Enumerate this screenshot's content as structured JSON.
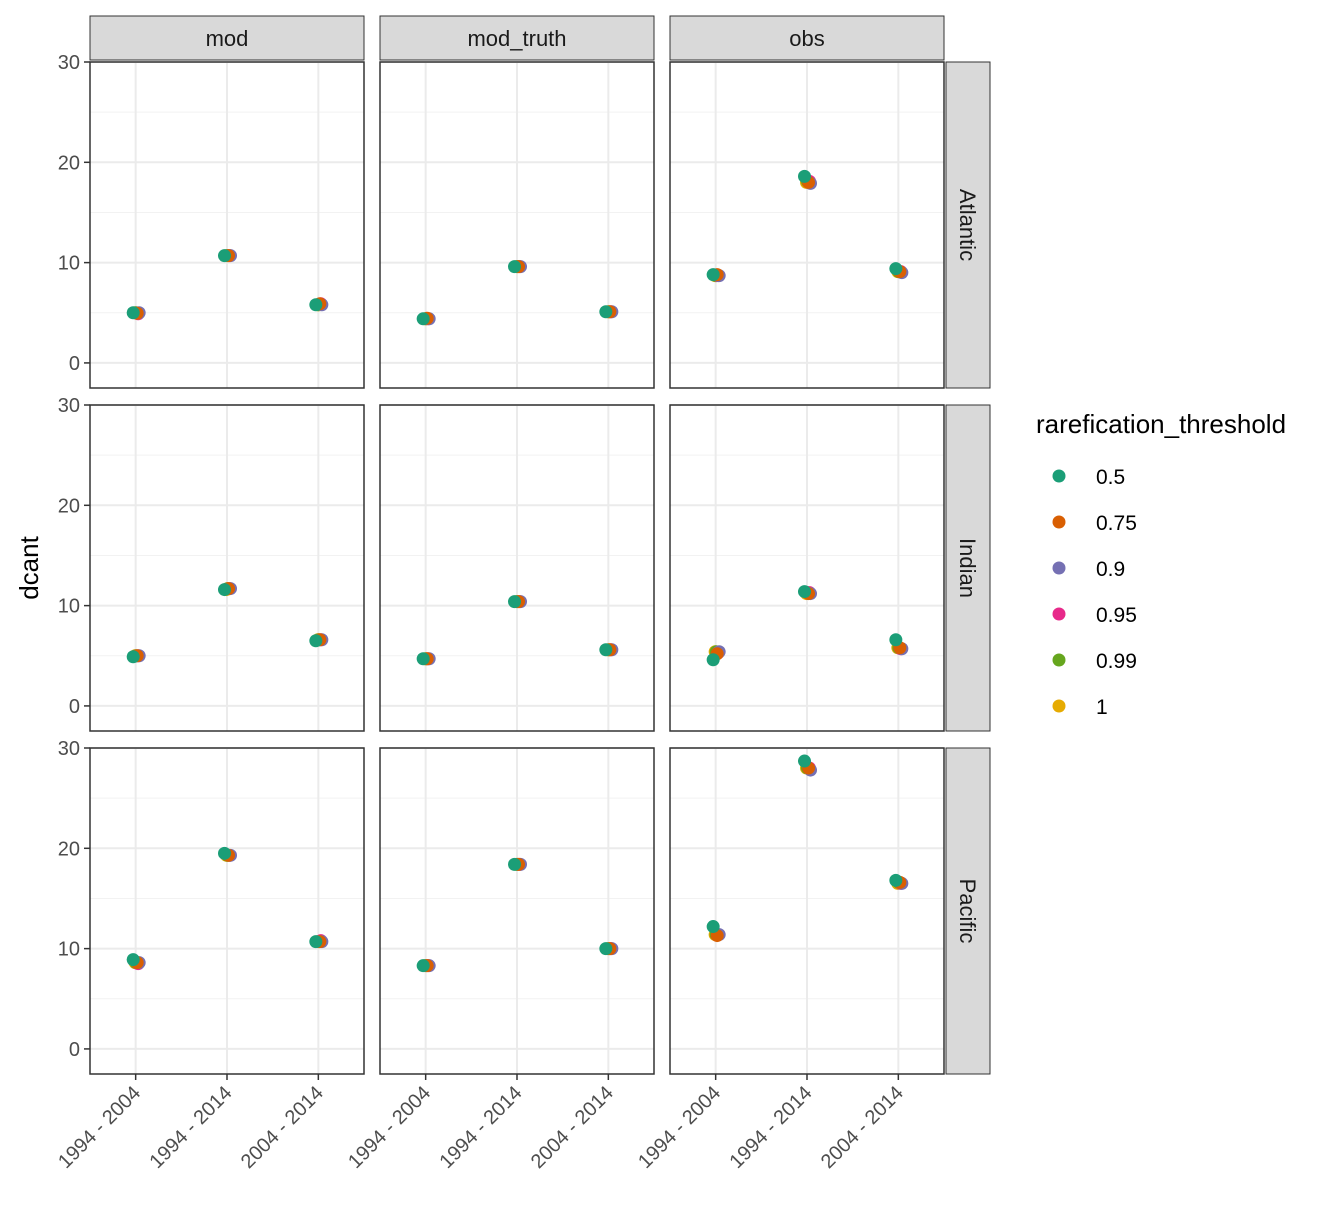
{
  "chart_data": {
    "type": "scatter",
    "ylabel": "dcant",
    "ylim": [
      -2.5,
      30
    ],
    "yticks": [
      0,
      10,
      20,
      30
    ],
    "x_categories": [
      "1994 - 2004",
      "1994 - 2014",
      "2004 - 2014"
    ],
    "facet_columns": [
      "mod",
      "mod_truth",
      "obs"
    ],
    "facet_rows": [
      "Atlantic",
      "Indian",
      "Pacific"
    ],
    "grid": true,
    "legend": {
      "title": "rarefication_threshold",
      "position": "right",
      "entries": [
        {
          "label": "0.5",
          "color": "#1B9E77"
        },
        {
          "label": "0.75",
          "color": "#D95F02"
        },
        {
          "label": "0.9",
          "color": "#7570B3"
        },
        {
          "label": "0.95",
          "color": "#E7298A"
        },
        {
          "label": "0.99",
          "color": "#66A61E"
        },
        {
          "label": "1",
          "color": "#E6AB02"
        }
      ]
    },
    "panels": [
      {
        "row": "Atlantic",
        "column": "mod",
        "values": [
          [
            5.0,
            4.95,
            5.0,
            4.9,
            5.0,
            5.0
          ],
          [
            10.7,
            10.7,
            10.7,
            10.7,
            10.7,
            10.7
          ],
          [
            5.8,
            5.9,
            5.8,
            5.9,
            5.8,
            5.8
          ]
        ]
      },
      {
        "row": "Atlantic",
        "column": "mod_truth",
        "values": [
          [
            4.4,
            4.45,
            4.4,
            4.4,
            4.4,
            4.4
          ],
          [
            9.6,
            9.6,
            9.6,
            9.6,
            9.6,
            9.6
          ],
          [
            5.1,
            5.1,
            5.1,
            5.1,
            5.1,
            5.1
          ]
        ]
      },
      {
        "row": "Atlantic",
        "column": "obs",
        "values": [
          [
            8.8,
            8.8,
            8.7,
            8.7,
            8.7,
            8.7
          ],
          [
            18.6,
            18.0,
            17.9,
            18.1,
            18.1,
            18.0
          ],
          [
            9.4,
            9.1,
            9.0,
            9.1,
            9.1,
            9.1
          ]
        ]
      },
      {
        "row": "Indian",
        "column": "mod",
        "values": [
          [
            4.9,
            5.0,
            5.0,
            5.0,
            5.0,
            5.0
          ],
          [
            11.6,
            11.7,
            11.7,
            11.7,
            11.7,
            11.6
          ],
          [
            6.5,
            6.6,
            6.6,
            6.6,
            6.6,
            6.6
          ]
        ]
      },
      {
        "row": "Indian",
        "column": "mod_truth",
        "values": [
          [
            4.7,
            4.7,
            4.7,
            4.7,
            4.7,
            4.7
          ],
          [
            10.4,
            10.4,
            10.4,
            10.4,
            10.4,
            10.4
          ],
          [
            5.6,
            5.6,
            5.6,
            5.6,
            5.6,
            5.6
          ]
        ]
      },
      {
        "row": "Indian",
        "column": "obs",
        "values": [
          [
            4.6,
            5.2,
            5.4,
            5.3,
            5.4,
            5.4
          ],
          [
            11.4,
            11.2,
            11.2,
            11.3,
            11.3,
            11.2
          ],
          [
            6.6,
            5.8,
            5.7,
            5.7,
            5.8,
            5.8
          ]
        ]
      },
      {
        "row": "Pacific",
        "column": "mod",
        "values": [
          [
            8.9,
            8.6,
            8.6,
            8.5,
            8.6,
            8.6
          ],
          [
            19.5,
            19.3,
            19.3,
            19.3,
            19.3,
            19.3
          ],
          [
            10.7,
            10.7,
            10.7,
            10.8,
            10.7,
            10.7
          ]
        ]
      },
      {
        "row": "Pacific",
        "column": "mod_truth",
        "values": [
          [
            8.3,
            8.3,
            8.3,
            8.3,
            8.3,
            8.3
          ],
          [
            18.4,
            18.4,
            18.4,
            18.4,
            18.4,
            18.4
          ],
          [
            10.0,
            10.0,
            10.0,
            10.0,
            10.0,
            10.0
          ]
        ]
      },
      {
        "row": "Pacific",
        "column": "obs",
        "values": [
          [
            12.2,
            11.3,
            11.4,
            11.4,
            11.4,
            11.4
          ],
          [
            28.7,
            28.0,
            27.8,
            28.0,
            28.0,
            28.0
          ],
          [
            16.8,
            16.6,
            16.5,
            16.5,
            16.6,
            16.5
          ]
        ]
      }
    ]
  }
}
